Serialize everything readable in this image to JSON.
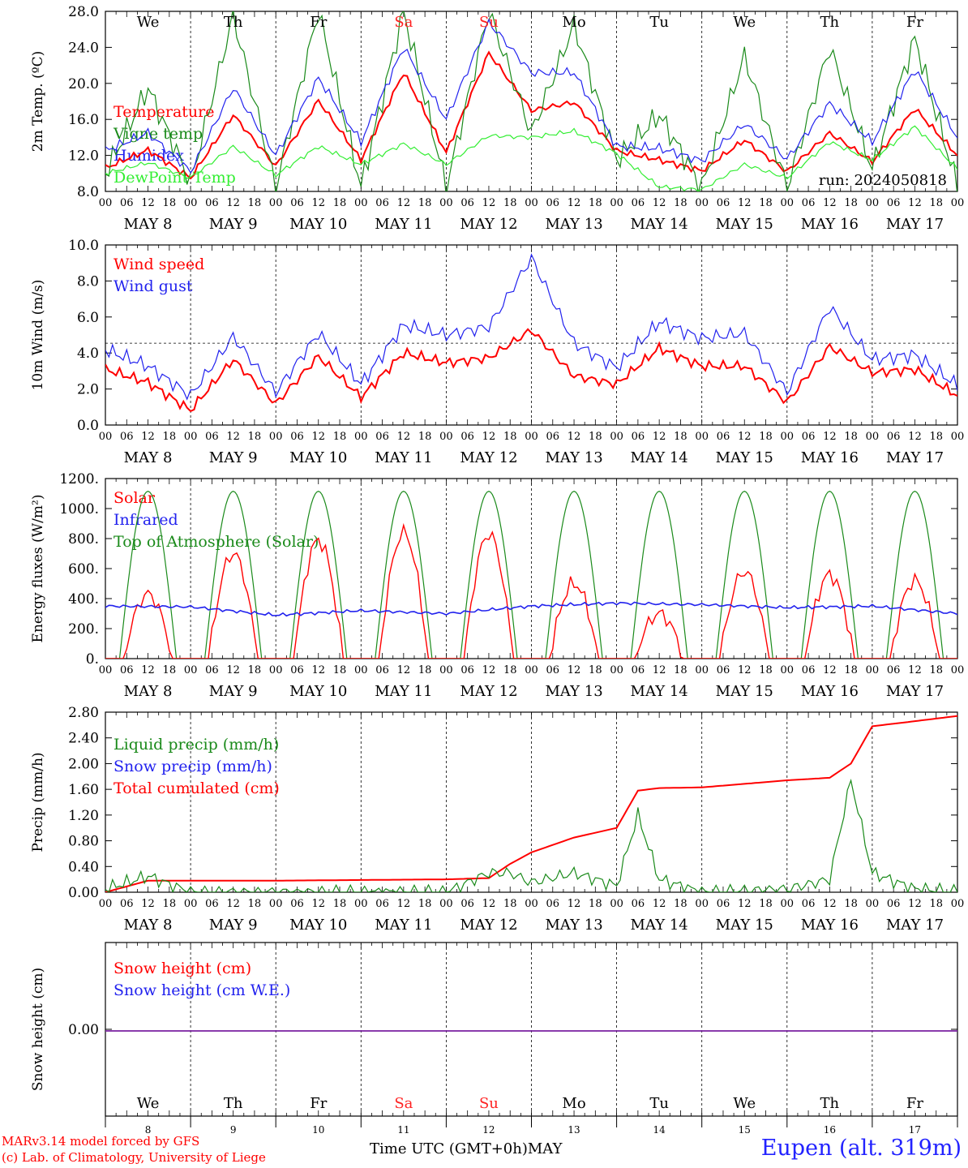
{
  "chart_data": [
    {
      "type": "line",
      "ylabel": "2m Temp. (ºC)",
      "ylim": [
        8.0,
        28.0
      ],
      "yticks": [
        "8.0",
        "12.0",
        "16.0",
        "20.0",
        "24.0",
        "28.0"
      ],
      "day_labels_top": [
        "We",
        "Th",
        "Fr",
        "Sa",
        "Su",
        "Mo",
        "Tu",
        "We",
        "Th",
        "Fr"
      ],
      "legend": [
        "Temperature",
        "Vigne temp",
        "Humidex",
        "DewPoint Temp"
      ],
      "legend_colors": [
        "#ff0000",
        "#1a8a1a",
        "#2222ee",
        "#33ee33"
      ],
      "annotation": "run: 2024050818",
      "x_hours": [
        0,
        12,
        24,
        36,
        48,
        60,
        72,
        84,
        96,
        108,
        120,
        132,
        144,
        156,
        168,
        180,
        192,
        204,
        216,
        228,
        240
      ],
      "series": [
        {
          "name": "Temperature",
          "color": "#ff0000",
          "values": [
            10.6,
            12.6,
            9.5,
            16.5,
            10.8,
            18.1,
            11.5,
            21.2,
            12.3,
            23.4,
            17.0,
            17.9,
            12.5,
            11.5,
            10.3,
            13.7,
            10.2,
            14.5,
            11.3,
            17.2,
            12.0
          ]
        },
        {
          "name": "Vigne temp",
          "color": "#1a8a1a",
          "values": [
            10.0,
            19.5,
            9.0,
            27.5,
            8.5,
            28.0,
            8.5,
            28.0,
            8.5,
            28.0,
            14.5,
            26.5,
            11.5,
            16.5,
            8.5,
            23.0,
            8.5,
            24.0,
            10.5,
            25.0,
            8.5
          ]
        },
        {
          "name": "Humidex",
          "color": "#2222ee",
          "values": [
            12.5,
            14.5,
            10.2,
            19.5,
            12.0,
            20.6,
            13.5,
            24.0,
            16.0,
            26.8,
            21.2,
            21.2,
            13.0,
            12.8,
            11.4,
            15.5,
            11.6,
            17.8,
            13.5,
            21.5,
            14.0
          ]
        },
        {
          "name": "DewPoint Temp",
          "color": "#33ee33",
          "values": [
            10.0,
            11.2,
            9.5,
            13.0,
            9.8,
            13.0,
            11.0,
            13.3,
            11.0,
            14.2,
            14.0,
            14.7,
            12.2,
            8.5,
            8.2,
            11.0,
            9.5,
            13.5,
            11.5,
            15.2,
            10.5
          ]
        }
      ]
    },
    {
      "type": "line",
      "ylabel": "10m Wind (m/s)",
      "ylim": [
        0.0,
        11.0
      ],
      "yticks": [
        "0.0",
        "2.0",
        "4.0",
        "6.0",
        "8.0",
        "10.0"
      ],
      "legend": [
        "Wind speed",
        "Wind gust"
      ],
      "legend_colors": [
        "#ff0000",
        "#2222ee"
      ],
      "reference_line": 5.0,
      "x_hours": [
        0,
        12,
        24,
        36,
        48,
        60,
        72,
        84,
        96,
        108,
        120,
        132,
        144,
        156,
        168,
        180,
        192,
        204,
        216,
        228,
        240
      ],
      "series": [
        {
          "name": "Wind speed",
          "color": "#ff0000",
          "values": [
            3.4,
            2.6,
            0.9,
            4.0,
            1.3,
            4.2,
            1.7,
            4.4,
            3.8,
            4.1,
            5.8,
            3.0,
            2.5,
            4.7,
            3.6,
            3.6,
            1.4,
            4.8,
            3.2,
            3.4,
            1.8
          ]
        },
        {
          "name": "Wind gust",
          "color": "#2222ee",
          "values": [
            4.6,
            3.6,
            1.8,
            5.4,
            2.0,
            5.6,
            2.5,
            6.1,
            5.5,
            6.0,
            10.2,
            5.0,
            3.5,
            6.3,
            5.3,
            5.6,
            2.0,
            7.2,
            4.0,
            4.3,
            2.4
          ]
        }
      ]
    },
    {
      "type": "line",
      "ylabel": "Energy fluxes (W/m²)",
      "ylim": [
        0,
        1200
      ],
      "yticks": [
        "0.",
        "200.",
        "400.",
        "600.",
        "800.",
        "1000.",
        "1200."
      ],
      "legend": [
        "Solar",
        "Infrared",
        "Top of Atmosphere (Solar)"
      ],
      "legend_colors": [
        "#ff0000",
        "#2222ee",
        "#1a8a1a"
      ],
      "solar_peaks": [
        430,
        700,
        790,
        840,
        830,
        500,
        300,
        580,
        560,
        520
      ],
      "infrared_level": [
        350,
        345,
        290,
        320,
        300,
        350,
        370,
        360,
        340,
        350,
        300
      ],
      "toa_peak": 1115
    },
    {
      "type": "line",
      "ylabel": "Precip (mm/h)",
      "ylim": [
        0.0,
        2.8
      ],
      "yticks": [
        "0.00",
        "0.40",
        "0.80",
        "1.20",
        "1.60",
        "2.00",
        "2.40",
        "2.80"
      ],
      "legend": [
        "Liquid precip (mm/h)",
        "Snow precip (mm/h)",
        "Total cumulated (cm)"
      ],
      "legend_colors": [
        "#1a8a1a",
        "#2222ee",
        "#ff0000"
      ],
      "x_hours": [
        0,
        12,
        24,
        48,
        72,
        96,
        108,
        114,
        120,
        132,
        144,
        150,
        156,
        168,
        192,
        204,
        210,
        216,
        228,
        240
      ],
      "series": [
        {
          "name": "Total cumulated (cm)",
          "color": "#ff0000",
          "values": [
            0.0,
            0.18,
            0.18,
            0.18,
            0.19,
            0.2,
            0.22,
            0.44,
            0.62,
            0.85,
            1.0,
            1.58,
            1.62,
            1.63,
            1.74,
            1.78,
            2.0,
            2.58,
            2.66,
            2.74
          ]
        },
        {
          "name": "Liquid precip (mm/h)",
          "color": "#1a8a1a",
          "values": [
            0.05,
            0.25,
            0.0,
            0.0,
            0.0,
            0.0,
            0.3,
            0.3,
            0.15,
            0.3,
            0.1,
            1.2,
            0.2,
            0.0,
            0.05,
            0.2,
            1.75,
            0.3,
            0.05,
            0.0
          ]
        }
      ]
    },
    {
      "type": "line",
      "ylabel": "Snow height (cm)",
      "yticks": [
        "0.00"
      ],
      "legend": [
        "Snow height (cm)",
        "Snow height (cm W.E.)"
      ],
      "legend_colors": [
        "#ff0000",
        "#2222ee"
      ],
      "day_labels_bottom": [
        "We",
        "Th",
        "Fr",
        "Sa",
        "Su",
        "Mo",
        "Tu",
        "We",
        "Th",
        "Fr"
      ],
      "day_numbers": [
        "8",
        "9",
        "10",
        "11",
        "12",
        "13",
        "14",
        "15",
        "16",
        "17"
      ],
      "values": [
        0.0,
        0.0
      ]
    }
  ],
  "axis": {
    "hour_ticks": [
      "00",
      "06",
      "12",
      "18"
    ],
    "end_tick": "00",
    "date_labels": [
      "MAY  8",
      "MAY  9",
      "MAY 10",
      "MAY 11",
      "MAY 12",
      "MAY 13",
      "MAY 14",
      "MAY 15",
      "MAY 16",
      "MAY 17"
    ],
    "weekend_color": "#ff2222",
    "weekend_days": [
      3,
      4
    ]
  },
  "footer": {
    "model": "MARv3.14 model forced by GFS",
    "credit": "(c) Lab. of Climatology, University of Liege",
    "xlabel": "Time UTC (GMT+0h)MAY",
    "station": "Eupen (alt. 319m)"
  }
}
